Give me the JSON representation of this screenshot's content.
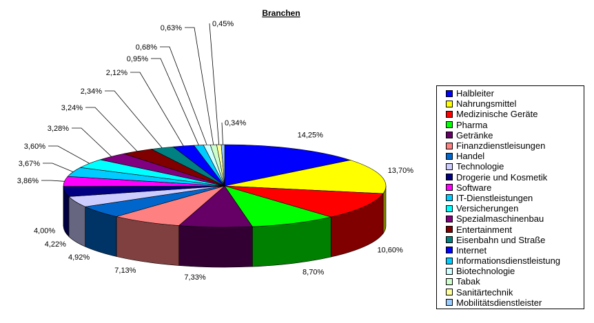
{
  "chart_data": {
    "type": "pie",
    "title": "Branchen",
    "legend_position": "right",
    "style": "3d-exploded-pie",
    "slices": [
      {
        "name": "Halbleiter",
        "value": 14.25,
        "label": "14,25%",
        "color": "#0000FF"
      },
      {
        "name": "Nahrungsmittel",
        "value": 13.7,
        "label": "13,70%",
        "color": "#FFFF00"
      },
      {
        "name": "Medizinische Geräte",
        "value": 10.6,
        "label": "10,60%",
        "color": "#FF0000"
      },
      {
        "name": "Pharma",
        "value": 8.7,
        "label": "8,70%",
        "color": "#00FF00"
      },
      {
        "name": "Getränke",
        "value": 7.33,
        "label": "7,33%",
        "color": "#660066"
      },
      {
        "name": "Finanzdienstleisungen",
        "value": 7.13,
        "label": "7,13%",
        "color": "#FF8080"
      },
      {
        "name": "Handel",
        "value": 4.92,
        "label": "4,92%",
        "color": "#0066CC"
      },
      {
        "name": "Technologie",
        "value": 4.22,
        "label": "4,22%",
        "color": "#CCCCFF"
      },
      {
        "name": "Drogerie und Kosmetik",
        "value": 4.0,
        "label": "4,00%",
        "color": "#000080"
      },
      {
        "name": "Software",
        "value": 3.86,
        "label": "3,86%",
        "color": "#FF00FF"
      },
      {
        "name": "IT-Dienstleistungen",
        "value": 3.67,
        "label": "3,67%",
        "color": "#00CCFF"
      },
      {
        "name": "Versicherungen",
        "value": 3.6,
        "label": "3,60%",
        "color": "#00FFFF"
      },
      {
        "name": "Spezialmaschinenbau",
        "value": 3.28,
        "label": "3,28%",
        "color": "#800080"
      },
      {
        "name": "Entertainment",
        "value": 3.24,
        "label": "3,24%",
        "color": "#800000"
      },
      {
        "name": "Eisenbahn und Straße",
        "value": 2.34,
        "label": "2,34%",
        "color": "#008080"
      },
      {
        "name": "Internet",
        "value": 2.12,
        "label": "2,12%",
        "color": "#0000FF"
      },
      {
        "name": "Informationsdienstleistung",
        "value": 0.95,
        "label": "0,95%",
        "color": "#00CCFF"
      },
      {
        "name": "Biotechnologie",
        "value": 0.68,
        "label": "0,68%",
        "color": "#CCFFFF"
      },
      {
        "name": "Tabak",
        "value": 0.63,
        "label": "0,63%",
        "color": "#CCFFCC"
      },
      {
        "name": "Sanitärtechnik",
        "value": 0.45,
        "label": "0,45%",
        "color": "#FFFF99"
      },
      {
        "name": "Mobilitätsdienstleister",
        "value": 0.34,
        "label": "0,34%",
        "color": "#99CCFF"
      }
    ]
  }
}
